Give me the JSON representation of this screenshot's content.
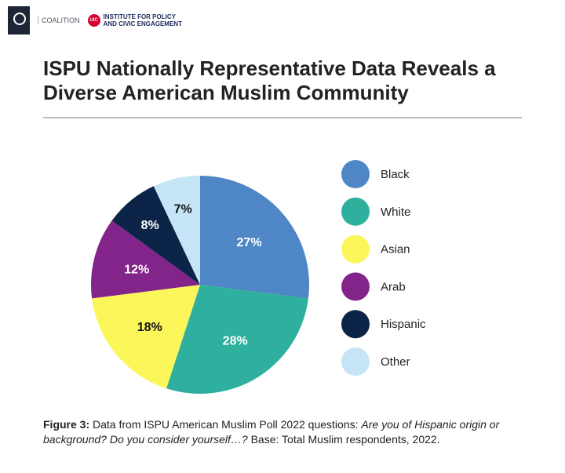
{
  "logos": {
    "ispu": "ISPU",
    "coalition": "COALITION",
    "uic_badge": "UIC",
    "uic_text": "INSTITUTE FOR POLICY\nAND CIVIC ENGAGEMENT"
  },
  "title": "ISPU Nationally Representative Data Reveals a Diverse American Muslim Community",
  "chart_data": {
    "type": "pie",
    "title": "ISPU Nationally Representative Data Reveals a Diverse American Muslim Community",
    "legend_position": "right",
    "slices": [
      {
        "label": "Black",
        "value": 27,
        "text": "27%",
        "color": "#4f86c6",
        "text_color": "#ffffff"
      },
      {
        "label": "White",
        "value": 28,
        "text": "28%",
        "color": "#2fb09e",
        "text_color": "#ffffff"
      },
      {
        "label": "Asian",
        "value": 18,
        "text": "18%",
        "color": "#fbf65a",
        "text_color": "#111111"
      },
      {
        "label": "Arab",
        "value": 12,
        "text": "12%",
        "color": "#83248a",
        "text_color": "#ffffff"
      },
      {
        "label": "Hispanic",
        "value": 8,
        "text": "8%",
        "color": "#0c2448",
        "text_color": "#ffffff"
      },
      {
        "label": "Other",
        "value": 7,
        "text": "7%",
        "color": "#c5e5f6",
        "text_color": "#111111"
      }
    ]
  },
  "caption": {
    "label": "Figure 3:",
    "text1": " Data from ISPU American Muslim Poll 2022 questions: ",
    "italic": "Are you of Hispanic origin or background? Do you consider yourself…?",
    "text2": " Base: Total Muslim respondents, 2022."
  }
}
